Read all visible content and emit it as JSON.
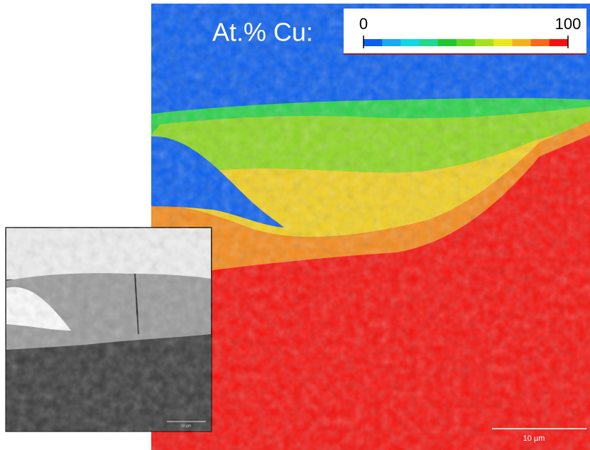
{
  "colorbar": {
    "label": "At.% Cu:",
    "min": 0,
    "max": 100
  },
  "main_map": {
    "scale_bar": "10 µm"
  },
  "inset": {
    "scale_bar": "10 µm"
  }
}
